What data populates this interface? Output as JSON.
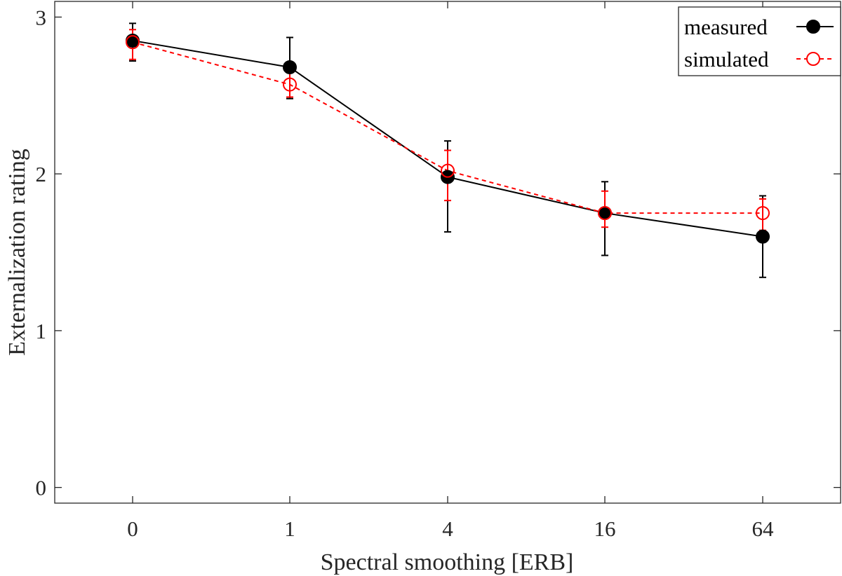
{
  "chart_data": {
    "type": "line",
    "title": "",
    "xlabel": "Spectral smoothing [ERB]",
    "ylabel": "Externalization rating",
    "categories": [
      "0",
      "1",
      "4",
      "16",
      "64"
    ],
    "ylim": [
      -0.1,
      3.1
    ],
    "yticks": [
      "0",
      "1",
      "2",
      "3"
    ],
    "grid": false,
    "legend_position": "top-right",
    "series": [
      {
        "name": "measured",
        "color": "#000000",
        "line_style": "solid",
        "marker": "filled-circle",
        "values": [
          2.85,
          2.68,
          1.98,
          1.75,
          1.6
        ],
        "err_low": [
          2.72,
          2.48,
          1.63,
          1.48,
          1.34
        ],
        "err_high": [
          2.96,
          2.87,
          2.21,
          1.95,
          1.86
        ]
      },
      {
        "name": "simulated",
        "color": "#ff0000",
        "line_style": "dashed",
        "marker": "open-circle",
        "values": [
          2.84,
          2.57,
          2.02,
          1.75,
          1.75
        ],
        "err_low": [
          2.73,
          2.49,
          1.83,
          1.66,
          1.64
        ],
        "err_high": [
          2.92,
          2.68,
          2.15,
          1.89,
          1.84
        ]
      }
    ]
  }
}
